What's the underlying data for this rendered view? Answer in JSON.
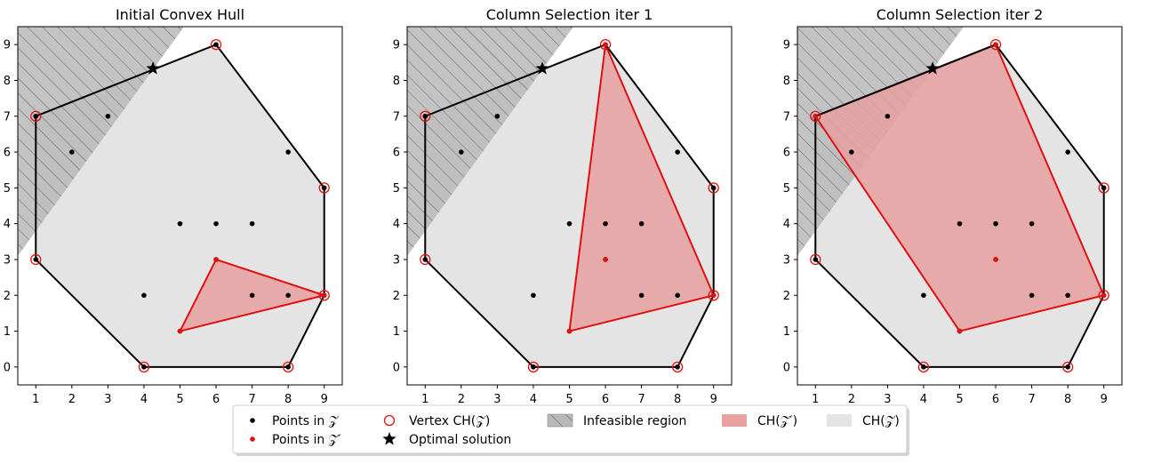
{
  "chart_data": [
    {
      "type": "scatter",
      "title": "Initial Convex Hull",
      "xlim": [
        0.5,
        9.5
      ],
      "ylim": [
        -0.5,
        9.5
      ],
      "xticks": [
        1,
        2,
        3,
        4,
        5,
        6,
        7,
        8,
        9
      ],
      "yticks": [
        0,
        1,
        2,
        3,
        4,
        5,
        6,
        7,
        8,
        9
      ],
      "points_Z": [
        [
          1,
          7
        ],
        [
          1,
          3
        ],
        [
          2,
          6
        ],
        [
          3,
          7
        ],
        [
          4,
          2
        ],
        [
          4,
          0
        ],
        [
          5,
          4
        ],
        [
          5,
          1
        ],
        [
          6,
          9
        ],
        [
          6,
          4
        ],
        [
          6,
          3
        ],
        [
          7,
          4
        ],
        [
          7,
          2
        ],
        [
          8,
          6
        ],
        [
          8,
          2
        ],
        [
          8,
          0
        ],
        [
          9,
          5
        ],
        [
          9,
          2
        ]
      ],
      "points_Zprime": [
        [
          5,
          1
        ],
        [
          6,
          3
        ],
        [
          9,
          2
        ]
      ],
      "hull_Z": [
        [
          6,
          9
        ],
        [
          9,
          5
        ],
        [
          9,
          2
        ],
        [
          8,
          0
        ],
        [
          4,
          0
        ],
        [
          1,
          3
        ],
        [
          1,
          7
        ]
      ],
      "hull_Zprime": [
        [
          5,
          1
        ],
        [
          6,
          3
        ],
        [
          9,
          2
        ]
      ],
      "optimal_solution": [
        4.25,
        8.33
      ],
      "infeasible_boundary": [
        [
          0.5,
          3.1
        ],
        [
          5.4,
          9.9
        ]
      ]
    },
    {
      "type": "scatter",
      "title": "Column Selection iter 1",
      "xlim": [
        0.5,
        9.5
      ],
      "ylim": [
        -0.5,
        9.5
      ],
      "xticks": [
        1,
        2,
        3,
        4,
        5,
        6,
        7,
        8,
        9
      ],
      "yticks": [
        0,
        1,
        2,
        3,
        4,
        5,
        6,
        7,
        8,
        9
      ],
      "points_Z": [
        [
          1,
          7
        ],
        [
          1,
          3
        ],
        [
          2,
          6
        ],
        [
          3,
          7
        ],
        [
          4,
          2
        ],
        [
          4,
          0
        ],
        [
          5,
          4
        ],
        [
          5,
          1
        ],
        [
          6,
          9
        ],
        [
          6,
          4
        ],
        [
          6,
          3
        ],
        [
          7,
          4
        ],
        [
          7,
          2
        ],
        [
          8,
          6
        ],
        [
          8,
          2
        ],
        [
          8,
          0
        ],
        [
          9,
          5
        ],
        [
          9,
          2
        ]
      ],
      "points_Zprime": [
        [
          5,
          1
        ],
        [
          6,
          3
        ],
        [
          6,
          9
        ],
        [
          9,
          2
        ]
      ],
      "hull_Z": [
        [
          6,
          9
        ],
        [
          9,
          5
        ],
        [
          9,
          2
        ],
        [
          8,
          0
        ],
        [
          4,
          0
        ],
        [
          1,
          3
        ],
        [
          1,
          7
        ]
      ],
      "hull_Zprime": [
        [
          5,
          1
        ],
        [
          6,
          9
        ],
        [
          9,
          2
        ]
      ],
      "optimal_solution": [
        4.25,
        8.33
      ],
      "infeasible_boundary": [
        [
          0.5,
          3.1
        ],
        [
          5.4,
          9.9
        ]
      ]
    },
    {
      "type": "scatter",
      "title": "Column Selection iter 2",
      "xlim": [
        0.5,
        9.5
      ],
      "ylim": [
        -0.5,
        9.5
      ],
      "xticks": [
        1,
        2,
        3,
        4,
        5,
        6,
        7,
        8,
        9
      ],
      "yticks": [
        0,
        1,
        2,
        3,
        4,
        5,
        6,
        7,
        8,
        9
      ],
      "points_Z": [
        [
          1,
          7
        ],
        [
          1,
          3
        ],
        [
          2,
          6
        ],
        [
          3,
          7
        ],
        [
          4,
          2
        ],
        [
          4,
          0
        ],
        [
          5,
          4
        ],
        [
          5,
          1
        ],
        [
          6,
          9
        ],
        [
          6,
          4
        ],
        [
          6,
          3
        ],
        [
          7,
          4
        ],
        [
          7,
          2
        ],
        [
          8,
          6
        ],
        [
          8,
          2
        ],
        [
          8,
          0
        ],
        [
          9,
          5
        ],
        [
          9,
          2
        ]
      ],
      "points_Zprime": [
        [
          1,
          7
        ],
        [
          5,
          1
        ],
        [
          6,
          3
        ],
        [
          6,
          9
        ],
        [
          9,
          2
        ]
      ],
      "hull_Z": [
        [
          6,
          9
        ],
        [
          9,
          5
        ],
        [
          9,
          2
        ],
        [
          8,
          0
        ],
        [
          4,
          0
        ],
        [
          1,
          3
        ],
        [
          1,
          7
        ]
      ],
      "hull_Zprime": [
        [
          1,
          7
        ],
        [
          6,
          9
        ],
        [
          9,
          2
        ],
        [
          5,
          1
        ]
      ],
      "optimal_solution": [
        4.25,
        8.33
      ],
      "infeasible_boundary": [
        [
          0.5,
          3.1
        ],
        [
          5.4,
          9.9
        ]
      ]
    }
  ],
  "legend": {
    "items": [
      {
        "label": "Points in 𝒵",
        "symbol": "black-dot"
      },
      {
        "label": "Points in 𝒵′",
        "symbol": "red-dot"
      },
      {
        "label": "Vertex CH(𝒵)",
        "symbol": "red-open-circle"
      },
      {
        "label": "Optimal solution",
        "symbol": "black-star"
      },
      {
        "label": "Infeasible region",
        "symbol": "hatched-patch"
      },
      {
        "label": "CH(𝒵′)",
        "symbol": "red-patch"
      },
      {
        "label": "CH(𝒵)",
        "symbol": "gray-patch"
      }
    ]
  },
  "colors": {
    "hull_fill": "#e4e4e4",
    "subhull_fill": "#e8a0a0",
    "subhull_edge": "#e01010",
    "infeasible_fill": "#b8b8b8",
    "point": "#000000",
    "red_point": "#e01010"
  }
}
